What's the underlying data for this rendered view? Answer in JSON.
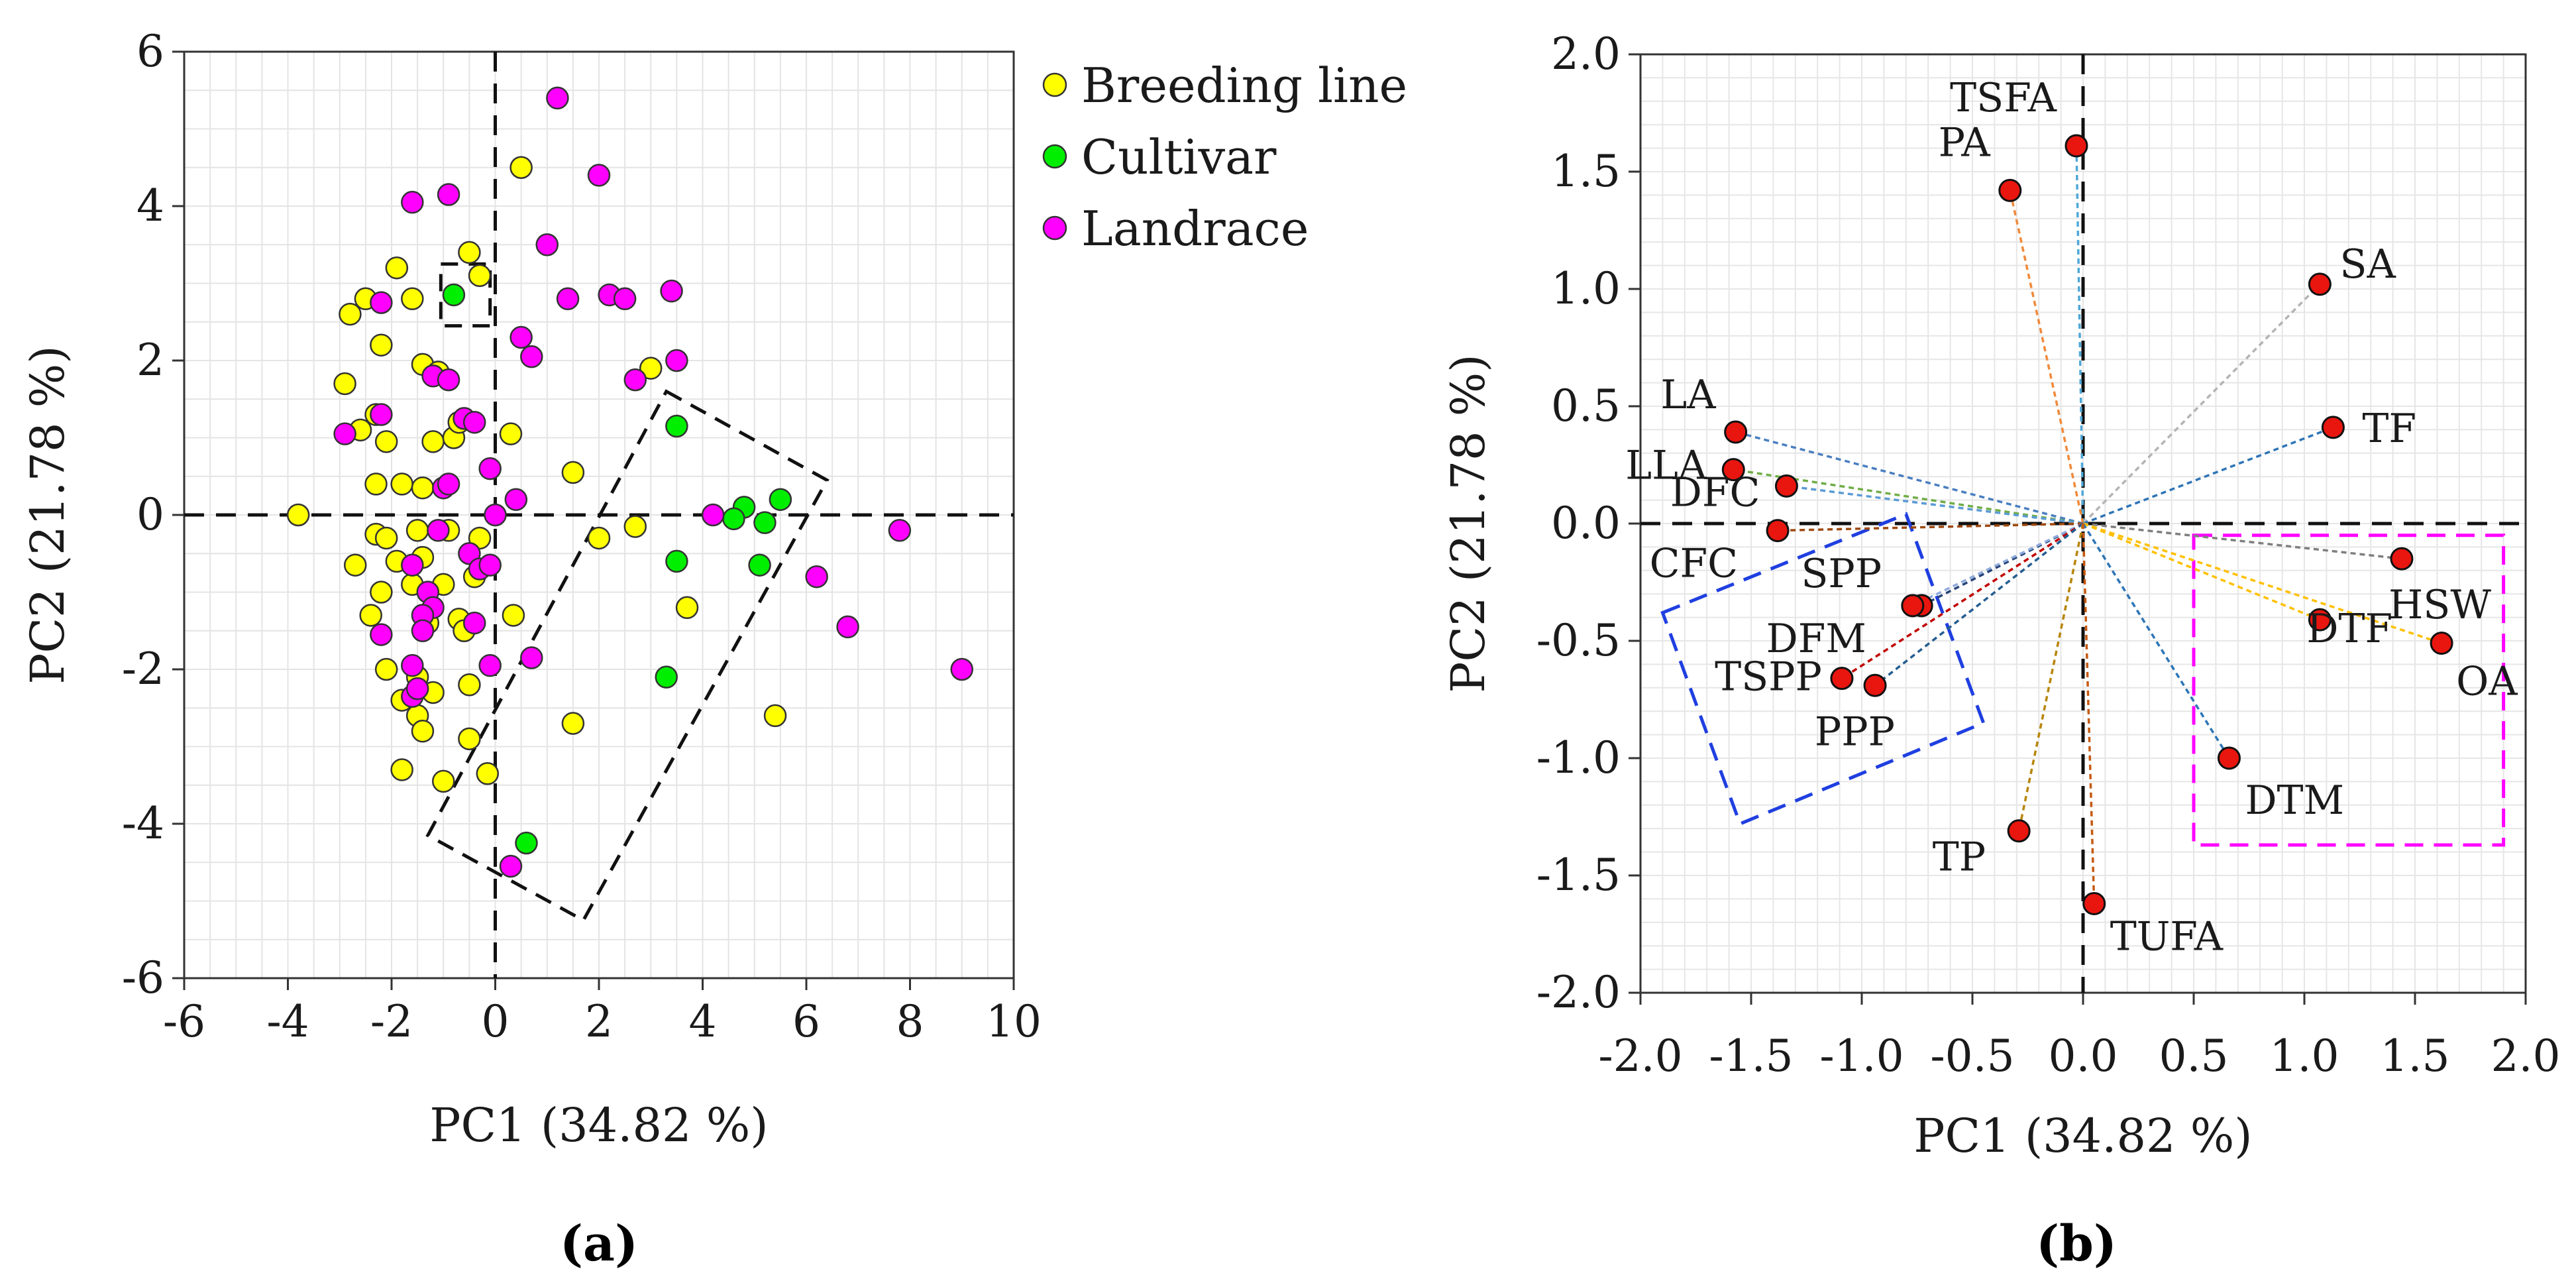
{
  "chart_data": [
    {
      "type": "scatter",
      "panel_label": "(a)",
      "xlabel": "PC1 (34.82 %)",
      "ylabel": "PC2 (21.78 %)",
      "xlim": [
        -6,
        10
      ],
      "ylim": [
        -6,
        6
      ],
      "xticks": [
        "-6",
        "-4",
        "-2",
        "0",
        "2",
        "4",
        "6",
        "8",
        "10"
      ],
      "yticks": [
        "6",
        "4",
        "2",
        "0",
        "-2",
        "-4",
        "-6"
      ],
      "grid": true,
      "legend_position": "top-right outside",
      "series": [
        {
          "name": "Breeding line",
          "color": "#ffff00",
          "points": [
            [
              0.5,
              4.5
            ],
            [
              -0.5,
              3.4
            ],
            [
              -1.9,
              3.2
            ],
            [
              -0.3,
              3.1
            ],
            [
              -2.5,
              2.8
            ],
            [
              -2.8,
              2.6
            ],
            [
              -1.6,
              2.8
            ],
            [
              -2.2,
              2.2
            ],
            [
              -1.4,
              1.95
            ],
            [
              -1.1,
              1.85
            ],
            [
              -2.9,
              1.7
            ],
            [
              -2.3,
              1.3
            ],
            [
              -2.6,
              1.1
            ],
            [
              -2.1,
              0.95
            ],
            [
              -1.2,
              0.95
            ],
            [
              -0.8,
              1.0
            ],
            [
              0.3,
              1.05
            ],
            [
              3.0,
              1.9
            ],
            [
              -0.7,
              1.2
            ],
            [
              -2.3,
              0.4
            ],
            [
              -1.8,
              0.4
            ],
            [
              -1.4,
              0.35
            ],
            [
              -3.8,
              0.0
            ],
            [
              -2.3,
              -0.25
            ],
            [
              -2.1,
              -0.3
            ],
            [
              -1.5,
              -0.2
            ],
            [
              -0.9,
              -0.2
            ],
            [
              -0.3,
              -0.3
            ],
            [
              -1.9,
              -0.6
            ],
            [
              -1.4,
              -0.55
            ],
            [
              -2.7,
              -0.65
            ],
            [
              1.5,
              0.55
            ],
            [
              2.0,
              -0.3
            ],
            [
              2.7,
              -0.15
            ],
            [
              -2.2,
              -1.0
            ],
            [
              -1.6,
              -0.9
            ],
            [
              -1.0,
              -0.9
            ],
            [
              -0.4,
              -0.8
            ],
            [
              -2.4,
              -1.3
            ],
            [
              -1.3,
              -1.4
            ],
            [
              -0.7,
              -1.35
            ],
            [
              -0.6,
              -1.5
            ],
            [
              0.35,
              -1.3
            ],
            [
              3.7,
              -1.2
            ],
            [
              -2.1,
              -2.0
            ],
            [
              -1.5,
              -2.1
            ],
            [
              -1.2,
              -2.3
            ],
            [
              -0.5,
              -2.2
            ],
            [
              -1.8,
              -2.4
            ],
            [
              -1.5,
              -2.6
            ],
            [
              -1.4,
              -2.8
            ],
            [
              -0.5,
              -2.9
            ],
            [
              1.5,
              -2.7
            ],
            [
              5.4,
              -2.6
            ],
            [
              -1.8,
              -3.3
            ],
            [
              -1.0,
              -3.45
            ],
            [
              -0.15,
              -3.35
            ]
          ]
        },
        {
          "name": "Cultivar",
          "color": "#00ee00",
          "points": [
            [
              -0.8,
              2.85
            ],
            [
              3.5,
              1.15
            ],
            [
              4.8,
              0.1
            ],
            [
              5.5,
              0.2
            ],
            [
              4.6,
              -0.05
            ],
            [
              5.2,
              -0.1
            ],
            [
              3.5,
              -0.6
            ],
            [
              5.1,
              -0.65
            ],
            [
              3.3,
              -2.1
            ],
            [
              0.6,
              -4.25
            ]
          ]
        },
        {
          "name": "Landrace",
          "color": "#ff00ff",
          "points": [
            [
              1.2,
              5.4
            ],
            [
              2.0,
              4.4
            ],
            [
              -1.6,
              4.05
            ],
            [
              -0.9,
              4.15
            ],
            [
              1.0,
              3.5
            ],
            [
              -2.2,
              2.75
            ],
            [
              1.4,
              2.8
            ],
            [
              2.2,
              2.85
            ],
            [
              2.5,
              2.8
            ],
            [
              3.4,
              2.9
            ],
            [
              0.5,
              2.3
            ],
            [
              0.7,
              2.05
            ],
            [
              3.5,
              2.0
            ],
            [
              2.7,
              1.75
            ],
            [
              -1.2,
              1.8
            ],
            [
              -0.9,
              1.75
            ],
            [
              -2.2,
              1.3
            ],
            [
              -0.6,
              1.25
            ],
            [
              -0.4,
              1.2
            ],
            [
              -2.9,
              1.05
            ],
            [
              -1.0,
              0.35
            ],
            [
              -0.9,
              0.4
            ],
            [
              -0.1,
              0.6
            ],
            [
              0.4,
              0.2
            ],
            [
              4.2,
              0.0
            ],
            [
              6.2,
              -0.8
            ],
            [
              7.8,
              -0.2
            ],
            [
              6.8,
              -1.45
            ],
            [
              -1.1,
              -0.2
            ],
            [
              -0.5,
              -0.5
            ],
            [
              0.0,
              0.0
            ],
            [
              -1.6,
              -0.65
            ],
            [
              -0.3,
              -0.7
            ],
            [
              -0.1,
              -0.65
            ],
            [
              -1.3,
              -1.0
            ],
            [
              -1.2,
              -1.2
            ],
            [
              -1.4,
              -1.3
            ],
            [
              -2.2,
              -1.55
            ],
            [
              -1.4,
              -1.5
            ],
            [
              -0.4,
              -1.4
            ],
            [
              0.7,
              -1.85
            ],
            [
              -1.6,
              -1.95
            ],
            [
              -0.1,
              -1.95
            ],
            [
              -1.6,
              -2.35
            ],
            [
              -1.5,
              -2.25
            ],
            [
              9.0,
              -2.0
            ],
            [
              0.3,
              -4.55
            ]
          ]
        }
      ],
      "annotations": [
        {
          "type": "dashed-rectangle",
          "around": "cultivar at (-0.8, 2.85)"
        },
        {
          "type": "dashed-rotated-rectangle",
          "around": "cultivar cluster"
        }
      ]
    },
    {
      "type": "biplot",
      "panel_label": "(b)",
      "xlabel": "PC1 (34.82 %)",
      "ylabel": "PC2 (21.78 %)",
      "xlim": [
        -2.0,
        2.0
      ],
      "ylim": [
        -2.0,
        2.0
      ],
      "xticks": [
        "-2.0",
        "-1.5",
        "-1.0",
        "-0.5",
        "0.0",
        "0.5",
        "1.0",
        "1.5",
        "2.0"
      ],
      "yticks": [
        "2.0",
        "1.5",
        "1.0",
        "0.5",
        "0.0",
        "-0.5",
        "-1.0",
        "-1.5",
        "-2.0"
      ],
      "grid": true,
      "loadings": [
        {
          "name": "TSFA",
          "x": -0.03,
          "y": 1.61,
          "color": "#4fa8d8"
        },
        {
          "name": "PA",
          "x": -0.33,
          "y": 1.42,
          "color": "#f08a3c"
        },
        {
          "name": "SA",
          "x": 1.07,
          "y": 1.02,
          "color": "#b4b4b4"
        },
        {
          "name": "TF",
          "x": 1.13,
          "y": 0.41,
          "color": "#2e75b6"
        },
        {
          "name": "LA",
          "x": -1.57,
          "y": 0.39,
          "color": "#4a7fc1"
        },
        {
          "name": "LLA",
          "x": -1.58,
          "y": 0.23,
          "color": "#70ad47"
        },
        {
          "name": "DFC",
          "x": -1.34,
          "y": 0.16,
          "color": "#5b9bd5"
        },
        {
          "name": "CFC",
          "x": -1.38,
          "y": -0.03,
          "color": "#9e480e"
        },
        {
          "name": "HSW",
          "x": 1.44,
          "y": -0.15,
          "color": "#7f7f7f"
        },
        {
          "name": "SPP",
          "x": -0.73,
          "y": -0.35,
          "color": "#264478"
        },
        {
          "name": "DFM",
          "x": -0.77,
          "y": -0.35,
          "color": "#8faadc"
        },
        {
          "name": "DTF",
          "x": 1.07,
          "y": -0.41,
          "color": "#ffc000"
        },
        {
          "name": "OA",
          "x": 1.62,
          "y": -0.51,
          "color": "#ffc000"
        },
        {
          "name": "TSPP",
          "x": -1.09,
          "y": -0.66,
          "color": "#c00000"
        },
        {
          "name": "PPP",
          "x": -0.94,
          "y": -0.69,
          "color": "#255e91"
        },
        {
          "name": "DTM",
          "x": 0.66,
          "y": -1.0,
          "color": "#2e75b6"
        },
        {
          "name": "TP",
          "x": -0.29,
          "y": -1.31,
          "color": "#b8860b"
        },
        {
          "name": "TUFA",
          "x": 0.05,
          "y": -1.62,
          "color": "#c55a11"
        }
      ],
      "annotations": [
        {
          "type": "dashed-rotated-rectangle",
          "color": "#1f3fe0",
          "around": "SPP, DFM, TSPP, PPP"
        },
        {
          "type": "dashed-rectangle",
          "color": "#ff00ff",
          "around": "HSW, DTF, OA, DTM"
        }
      ]
    }
  ]
}
